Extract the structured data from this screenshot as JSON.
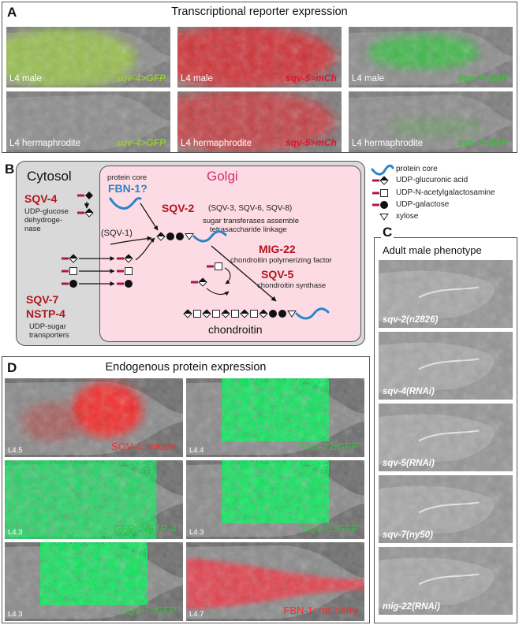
{
  "panelA": {
    "letter": "A",
    "title": "Transcriptional reporter expression",
    "images": [
      {
        "stage": "L4 male",
        "reporter": "sqv-4>GFP",
        "color": "#9acd32",
        "tint": "green-yellow"
      },
      {
        "stage": "L4 male",
        "reporter": "sqv-5>mCh",
        "color": "#e8102a",
        "tint": "red"
      },
      {
        "stage": "L4 male",
        "reporter": "sqv-7>GFP",
        "color": "#3fbf3a",
        "tint": "green"
      },
      {
        "stage": "L4 hermaphrodite",
        "reporter": "sqv-4>GFP",
        "color": "#9acd32",
        "tint": "gray"
      },
      {
        "stage": "L4 hermaphrodite",
        "reporter": "sqv-5>mCh",
        "color": "#e8102a",
        "tint": "red"
      },
      {
        "stage": "L4 hermaphrodite",
        "reporter": "sqv-7>GFP",
        "color": "#3fbf3a",
        "tint": "gray"
      }
    ]
  },
  "panelB": {
    "letter": "B",
    "cytosol": "Cytosol",
    "golgi": "Golgi",
    "protein_core_label": "protein core",
    "fbn1": "FBN-1?",
    "sqv4": "SQV-4",
    "sqv4_desc_1": "UDP-glucose",
    "sqv4_desc_2": "dehydroge-",
    "sqv4_desc_3": "nase",
    "sqv1": "(SQV-1)",
    "sqv2": "SQV-2",
    "sqv2_others": "(SQV-3, SQV-6, SQV-8)",
    "sqv2_desc_1": "sugar transferases assemble",
    "sqv2_desc_2": "tetrasaccharide linkage",
    "mig22": "MIG-22",
    "mig22_desc": "chondroitin polymerizing factor",
    "sqv5": "SQV-5",
    "sqv5_desc": "chondroitin synthase",
    "sqv7": "SQV-7",
    "nstp4": "NSTP-4",
    "transporter_desc_1": "UDP-sugar",
    "transporter_desc_2": "transporters",
    "chondroitin": "chondroitin",
    "legend": [
      {
        "icon": "protein-core-icon",
        "label": "protein core"
      },
      {
        "icon": "udp-glucuronic-acid-icon",
        "label": "UDP-glucuronic acid"
      },
      {
        "icon": "udp-n-acetylgalactosamine-icon",
        "label": "UDP-N-acetylgalactosamine"
      },
      {
        "icon": "udp-galactose-icon",
        "label": "UDP-galactose"
      },
      {
        "icon": "xylose-icon",
        "label": "xylose"
      }
    ]
  },
  "panelC": {
    "letter": "C",
    "title": "Adult male phenotype",
    "images": [
      {
        "genotype": "sqv-2(n2826)"
      },
      {
        "genotype": "sqv-4(RNAi)"
      },
      {
        "genotype": "sqv-5(RNAi)"
      },
      {
        "genotype": "sqv-7(ny50)"
      },
      {
        "genotype": "mig-22(RNAi)"
      }
    ]
  },
  "panelD": {
    "letter": "D",
    "title": "Endogenous protein expression",
    "images": [
      {
        "stage": "L4.5",
        "protein": "SQV-4::mKate",
        "color": "#ff2a2a",
        "tint": "red-spot"
      },
      {
        "stage": "L4.4",
        "protein": "MIG-22:GFP",
        "color": "#35c43a",
        "tint": "green-dots"
      },
      {
        "stage": "L4.3",
        "protein": "GFP::NSTP-4",
        "color": "#35c43a",
        "tint": "green-net"
      },
      {
        "stage": "L4.3",
        "protein": "SQV-5::GFP",
        "color": "#35c43a",
        "tint": "green-dots"
      },
      {
        "stage": "L4.3",
        "protein": "SQV-7::GFP",
        "color": "#35c43a",
        "tint": "green-dots"
      },
      {
        "stage": "L4.7",
        "protein": "FBN-1::mCherry",
        "color": "#ff2a2a",
        "tint": "red-tail"
      }
    ]
  }
}
